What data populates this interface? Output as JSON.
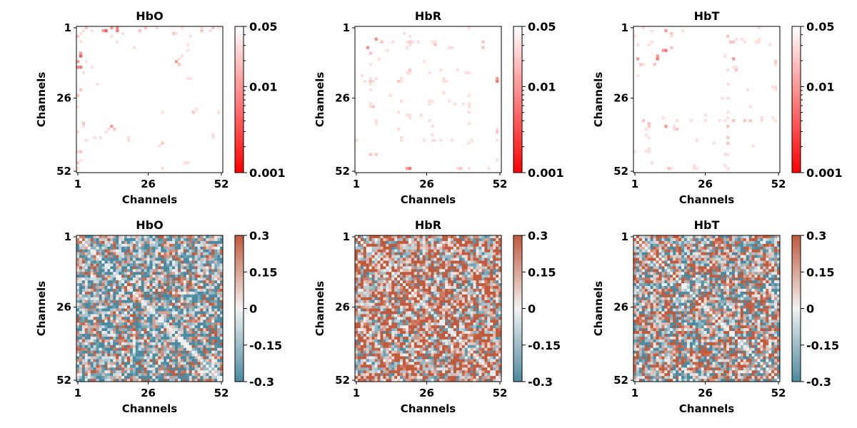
{
  "chart_data": [
    {
      "type": "heatmap",
      "title": "HbO",
      "xlabel": "Channels",
      "ylabel": "Channels",
      "x_ticks": [
        "1",
        "26",
        "52"
      ],
      "y_ticks": [
        "1",
        "26",
        "52"
      ],
      "colorbar": {
        "scale": "log",
        "range": [
          0.001,
          0.05
        ],
        "ticks": [
          "0.05",
          "0.01",
          "0.001"
        ],
        "colors": [
          "#ff0000",
          "#ffffff"
        ]
      },
      "description": "sparse p-values; most cells white (>=0.05), scattered red cells",
      "significant_cells": [
        [
          0,
          3,
          0.02
        ],
        [
          0,
          14,
          0.008
        ],
        [
          1,
          14,
          0.006
        ],
        [
          0,
          12,
          0.01
        ],
        [
          0,
          24,
          0.02
        ],
        [
          0,
          28,
          0.03
        ],
        [
          0,
          37,
          0.03
        ],
        [
          0,
          44,
          0.03
        ],
        [
          0,
          48,
          0.02
        ],
        [
          0,
          50,
          0.03
        ],
        [
          2,
          1,
          0.03
        ],
        [
          2,
          16,
          0.03
        ],
        [
          2,
          34,
          0.03
        ],
        [
          3,
          40,
          0.03
        ],
        [
          5,
          1,
          0.03
        ],
        [
          6,
          39,
          0.03
        ],
        [
          7,
          20,
          0.03
        ],
        [
          8,
          39,
          0.03
        ],
        [
          9,
          1,
          0.01
        ],
        [
          10,
          1,
          0.004
        ],
        [
          11,
          36,
          0.03
        ],
        [
          12,
          3,
          0.03
        ],
        [
          14,
          5,
          0.03
        ],
        [
          18,
          39,
          0.03
        ],
        [
          22,
          1,
          0.02
        ],
        [
          29,
          42,
          0.03
        ],
        [
          30,
          30,
          0.03
        ],
        [
          34,
          2,
          0.02
        ],
        [
          35,
          2,
          0.03
        ],
        [
          35,
          12,
          0.01
        ],
        [
          36,
          13,
          0.02
        ],
        [
          37,
          10,
          0.03
        ],
        [
          38,
          48,
          0.03
        ],
        [
          40,
          18,
          0.03
        ],
        [
          41,
          30,
          0.02
        ],
        [
          44,
          1,
          0.02
        ],
        [
          47,
          1,
          0.03
        ],
        [
          48,
          39,
          0.03
        ],
        [
          50,
          30,
          0.03
        ]
      ]
    },
    {
      "type": "heatmap",
      "title": "HbR",
      "xlabel": "Channels",
      "ylabel": "Channels",
      "x_ticks": [
        "1",
        "26",
        "52"
      ],
      "y_ticks": [
        "1",
        "26",
        "52"
      ],
      "colorbar": {
        "scale": "log",
        "range": [
          0.001,
          0.05
        ],
        "ticks": [
          "0.05",
          "0.01",
          "0.001"
        ],
        "colors": [
          "#ff0000",
          "#ffffff"
        ]
      },
      "description": "sparse p-values; most cells white, scattered red cells",
      "significant_cells": [
        [
          0,
          40,
          0.02
        ],
        [
          3,
          19,
          0.03
        ],
        [
          5,
          13,
          0.03
        ],
        [
          5,
          19,
          0.02
        ],
        [
          5,
          28,
          0.03
        ],
        [
          6,
          19,
          0.03
        ],
        [
          6,
          28,
          0.02
        ],
        [
          7,
          4,
          0.008
        ],
        [
          7,
          18,
          0.03
        ],
        [
          7,
          45,
          0.02
        ],
        [
          8,
          11,
          0.03
        ],
        [
          9,
          5,
          0.02
        ],
        [
          15,
          19,
          0.02
        ],
        [
          15,
          30,
          0.03
        ],
        [
          15,
          36,
          0.03
        ],
        [
          17,
          2,
          0.03
        ],
        [
          18,
          5,
          0.03
        ],
        [
          18,
          16,
          0.03
        ],
        [
          18,
          31,
          0.03
        ],
        [
          18,
          50,
          0.01
        ],
        [
          19,
          16,
          0.03
        ],
        [
          20,
          5,
          0.03
        ],
        [
          22,
          5,
          0.03
        ],
        [
          23,
          31,
          0.03
        ],
        [
          24,
          12,
          0.03
        ],
        [
          26,
          16,
          0.03
        ],
        [
          26,
          26,
          0.03
        ],
        [
          27,
          5,
          0.03
        ],
        [
          27,
          26,
          0.03
        ],
        [
          28,
          40,
          0.03
        ],
        [
          30,
          40,
          0.03
        ],
        [
          31,
          19,
          0.03
        ],
        [
          31,
          23,
          0.03
        ],
        [
          32,
          19,
          0.03
        ],
        [
          33,
          7,
          0.03
        ],
        [
          33,
          26,
          0.03
        ],
        [
          34,
          7,
          0.03
        ],
        [
          34,
          40,
          0.03
        ],
        [
          35,
          27,
          0.03
        ],
        [
          36,
          50,
          0.03
        ],
        [
          37,
          50,
          0.02
        ],
        [
          38,
          27,
          0.03
        ],
        [
          39,
          16,
          0.03
        ],
        [
          40,
          0,
          0.03
        ],
        [
          40,
          16,
          0.03
        ],
        [
          40,
          24,
          0.03
        ],
        [
          40,
          27,
          0.03
        ],
        [
          40,
          30,
          0.03
        ],
        [
          41,
          40,
          0.03
        ],
        [
          45,
          5,
          0.02
        ],
        [
          47,
          50,
          0.03
        ],
        [
          50,
          19,
          0.006
        ],
        [
          50,
          37,
          0.02
        ],
        [
          50,
          40,
          0.03
        ]
      ]
    },
    {
      "type": "heatmap",
      "title": "HbT",
      "xlabel": "Channels",
      "ylabel": "Channels",
      "x_ticks": [
        "1",
        "26",
        "52"
      ],
      "y_ticks": [
        "1",
        "26",
        "52"
      ],
      "colorbar": {
        "scale": "log",
        "range": [
          0.001,
          0.05
        ],
        "ticks": [
          "0.05",
          "0.01",
          "0.001"
        ],
        "colors": [
          "#ff0000",
          "#ffffff"
        ]
      },
      "description": "sparse p-values; most cells white, scattered red cells",
      "significant_cells": [
        [
          0,
          3,
          0.03
        ],
        [
          1,
          6,
          0.03
        ],
        [
          2,
          13,
          0.02
        ],
        [
          3,
          13,
          0.03
        ],
        [
          4,
          36,
          0.03
        ],
        [
          4,
          38,
          0.03
        ],
        [
          4,
          44,
          0.03
        ],
        [
          5,
          6,
          0.03
        ],
        [
          6,
          48,
          0.03
        ],
        [
          7,
          13,
          0.02
        ],
        [
          8,
          11,
          0.006
        ],
        [
          10,
          8,
          0.01
        ],
        [
          11,
          1,
          0.01
        ],
        [
          13,
          50,
          0.03
        ],
        [
          14,
          36,
          0.03
        ],
        [
          15,
          33,
          0.03
        ],
        [
          15,
          36,
          0.02
        ],
        [
          17,
          1,
          0.03
        ],
        [
          20,
          33,
          0.03
        ],
        [
          21,
          50,
          0.03
        ],
        [
          22,
          40,
          0.03
        ],
        [
          22,
          50,
          0.03
        ],
        [
          25,
          33,
          0.03
        ],
        [
          30,
          33,
          0.03
        ],
        [
          31,
          25,
          0.03
        ],
        [
          32,
          10,
          0.03
        ],
        [
          32,
          33,
          0.03
        ],
        [
          32,
          45,
          0.03
        ],
        [
          33,
          3,
          0.02
        ],
        [
          34,
          5,
          0.02
        ],
        [
          35,
          5,
          0.02
        ],
        [
          35,
          11,
          0.01
        ],
        [
          35,
          14,
          0.03
        ],
        [
          35,
          33,
          0.02
        ],
        [
          39,
          5,
          0.03
        ],
        [
          39,
          33,
          0.02
        ],
        [
          41,
          28,
          0.03
        ],
        [
          41,
          33,
          0.02
        ],
        [
          42,
          42,
          0.03
        ],
        [
          43,
          5,
          0.03
        ],
        [
          44,
          0,
          0.03
        ],
        [
          44,
          5,
          0.03
        ],
        [
          45,
          33,
          0.03
        ],
        [
          49,
          21,
          0.03
        ],
        [
          49,
          32,
          0.03
        ],
        [
          50,
          12,
          0.02
        ],
        [
          50,
          33,
          0.03
        ]
      ]
    },
    {
      "type": "heatmap",
      "title": "HbO",
      "xlabel": "Channels",
      "ylabel": "Channels",
      "x_ticks": [
        "1",
        "26",
        "52"
      ],
      "y_ticks": [
        "1",
        "26",
        "52"
      ],
      "colorbar": {
        "scale": "linear",
        "range": [
          -0.3,
          0.3
        ],
        "ticks": [
          "0.3",
          "0.15",
          "0",
          "-0.15",
          "-0.3"
        ],
        "colors": [
          "#4a8aa0",
          "#f2f2f2",
          "#c2593b"
        ]
      },
      "description": "52x52 symmetric correlation matrix; predominantly negative (blue) values with scattered positive cells",
      "mean_value": -0.08
    },
    {
      "type": "heatmap",
      "title": "HbR",
      "xlabel": "Channels",
      "ylabel": "Channels",
      "x_ticks": [
        "1",
        "26",
        "52"
      ],
      "y_ticks": [
        "1",
        "26",
        "52"
      ],
      "colorbar": {
        "scale": "linear",
        "range": [
          -0.3,
          0.3
        ],
        "ticks": [
          "0.3",
          "0.15",
          "0",
          "-0.15",
          "-0.3"
        ],
        "colors": [
          "#4a8aa0",
          "#f2f2f2",
          "#c2593b"
        ]
      },
      "description": "52x52 symmetric correlation matrix; predominantly positive (red) values",
      "mean_value": 0.13
    },
    {
      "type": "heatmap",
      "title": "HbT",
      "xlabel": "Channels",
      "ylabel": "Channels",
      "x_ticks": [
        "1",
        "26",
        "52"
      ],
      "y_ticks": [
        "1",
        "26",
        "52"
      ],
      "colorbar": {
        "scale": "linear",
        "range": [
          -0.3,
          0.3
        ],
        "ticks": [
          "0.3",
          "0.15",
          "0",
          "-0.15",
          "-0.3"
        ],
        "colors": [
          "#4a8aa0",
          "#f2f2f2",
          "#c2593b"
        ]
      },
      "description": "52x52 symmetric correlation matrix; mixed positive and negative values",
      "mean_value": 0.02
    }
  ]
}
